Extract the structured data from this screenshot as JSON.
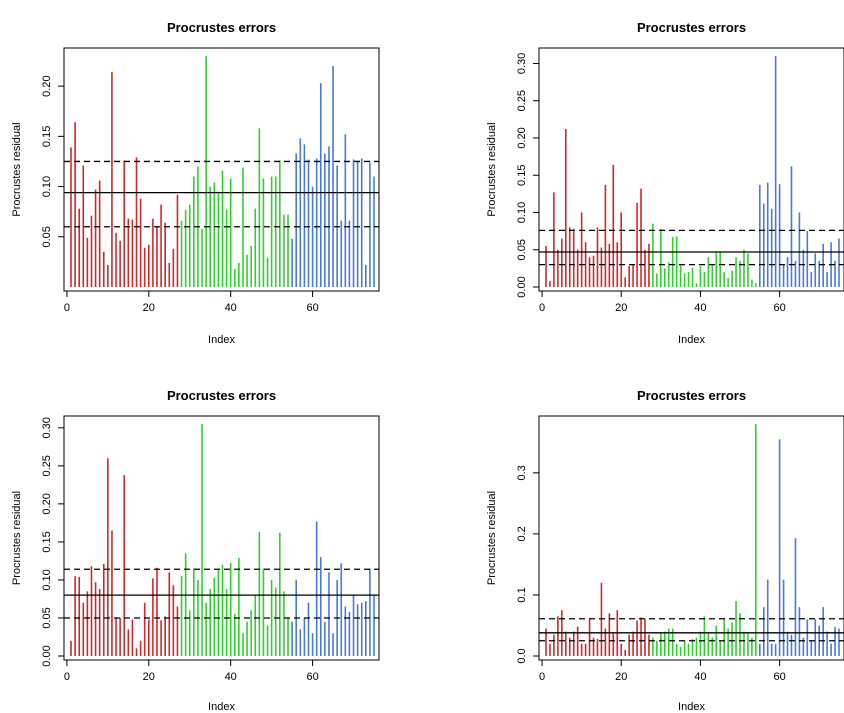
{
  "chart_data": [
    {
      "type": "bar",
      "title": "Procrustes errors",
      "xlabel": "Index",
      "ylabel": "Procrustes residual",
      "xlim": [
        1,
        75
      ],
      "ylim": [
        0.0,
        0.23
      ],
      "xticks": [
        0,
        20,
        40,
        60
      ],
      "yticks": [
        0.05,
        0.1,
        0.15,
        0.2
      ],
      "yticklabels": [
        "0.05",
        "0.10",
        "0.15",
        "0.20"
      ],
      "hlines": [
        {
          "name": "upper-quantile",
          "value": 0.125,
          "style": "dashed"
        },
        {
          "name": "median",
          "value": 0.094,
          "style": "solid"
        },
        {
          "name": "lower-quantile",
          "value": 0.06,
          "style": "dashed"
        }
      ],
      "group_colors": [
        "#cc2a2a",
        "#2fd12f",
        "#4a7bd4"
      ],
      "group_breaks": [
        27,
        54
      ],
      "values": [
        0.139,
        0.164,
        0.078,
        0.121,
        0.049,
        0.071,
        0.097,
        0.106,
        0.035,
        0.022,
        0.214,
        0.054,
        0.046,
        0.126,
        0.068,
        0.067,
        0.129,
        0.088,
        0.039,
        0.042,
        0.068,
        0.06,
        0.082,
        0.064,
        0.024,
        0.038,
        0.092,
        0.066,
        0.077,
        0.082,
        0.11,
        0.12,
        0.058,
        0.23,
        0.1,
        0.104,
        0.095,
        0.116,
        0.077,
        0.108,
        0.018,
        0.024,
        0.119,
        0.032,
        0.041,
        0.078,
        0.158,
        0.108,
        0.029,
        0.11,
        0.11,
        0.126,
        0.072,
        0.072,
        0.048,
        0.133,
        0.148,
        0.142,
        0.127,
        0.1,
        0.128,
        0.203,
        0.133,
        0.14,
        0.22,
        0.121,
        0.066,
        0.152,
        0.066,
        0.127,
        0.125,
        0.128,
        0.022,
        0.124,
        0.11
      ]
    },
    {
      "type": "bar",
      "title": "Procrustes errors",
      "xlabel": "Index",
      "ylabel": "Procrustes residual",
      "xlim": [
        1,
        75
      ],
      "ylim": [
        0.0,
        0.31
      ],
      "xticks": [
        0,
        20,
        40,
        60
      ],
      "yticks": [
        0.0,
        0.05,
        0.1,
        0.15,
        0.2,
        0.25,
        0.3
      ],
      "yticklabels": [
        "0.00",
        "0.05",
        "0.10",
        "0.15",
        "0.20",
        "0.25",
        "0.30"
      ],
      "hlines": [
        {
          "name": "upper-quantile",
          "value": 0.076,
          "style": "dashed"
        },
        {
          "name": "median",
          "value": 0.047,
          "style": "solid"
        },
        {
          "name": "lower-quantile",
          "value": 0.03,
          "style": "dashed"
        }
      ],
      "group_colors": [
        "#cc2a2a",
        "#2fd12f",
        "#4a7bd4"
      ],
      "group_breaks": [
        27,
        54
      ],
      "values": [
        0.055,
        0.008,
        0.127,
        0.05,
        0.065,
        0.212,
        0.08,
        0.078,
        0.05,
        0.1,
        0.06,
        0.04,
        0.042,
        0.08,
        0.053,
        0.137,
        0.058,
        0.164,
        0.06,
        0.1,
        0.013,
        0.028,
        0.03,
        0.113,
        0.132,
        0.05,
        0.058,
        0.085,
        0.018,
        0.078,
        0.025,
        0.033,
        0.067,
        0.068,
        0.03,
        0.018,
        0.02,
        0.026,
        0.005,
        0.028,
        0.02,
        0.04,
        0.03,
        0.048,
        0.048,
        0.02,
        0.012,
        0.022,
        0.04,
        0.035,
        0.05,
        0.045,
        0.01,
        0.005,
        0.137,
        0.112,
        0.14,
        0.105,
        0.31,
        0.138,
        0.03,
        0.04,
        0.162,
        0.035,
        0.1,
        0.05,
        0.075,
        0.02,
        0.045,
        0.035,
        0.058,
        0.02,
        0.06,
        0.035,
        0.065
      ]
    },
    {
      "type": "bar",
      "title": "Procrustes errors",
      "xlabel": "Index",
      "ylabel": "Procrustes residual",
      "xlim": [
        1,
        75
      ],
      "ylim": [
        0.0,
        0.305
      ],
      "xticks": [
        0,
        20,
        40,
        60
      ],
      "yticks": [
        0.0,
        0.05,
        0.1,
        0.15,
        0.2,
        0.25,
        0.3
      ],
      "yticklabels": [
        "0.00",
        "0.05",
        "0.10",
        "0.15",
        "0.20",
        "0.25",
        "0.30"
      ],
      "hlines": [
        {
          "name": "upper-quantile",
          "value": 0.114,
          "style": "dashed"
        },
        {
          "name": "median",
          "value": 0.08,
          "style": "solid"
        },
        {
          "name": "lower-quantile",
          "value": 0.05,
          "style": "dashed"
        }
      ],
      "group_colors": [
        "#cc2a2a",
        "#2fd12f",
        "#4a7bd4"
      ],
      "group_breaks": [
        27,
        54
      ],
      "values": [
        0.02,
        0.105,
        0.104,
        0.07,
        0.085,
        0.118,
        0.097,
        0.088,
        0.121,
        0.26,
        0.165,
        0.05,
        0.05,
        0.238,
        0.035,
        0.048,
        0.01,
        0.02,
        0.07,
        0.048,
        0.102,
        0.116,
        0.047,
        0.052,
        0.11,
        0.093,
        0.065,
        0.105,
        0.135,
        0.06,
        0.115,
        0.1,
        0.305,
        0.07,
        0.088,
        0.103,
        0.113,
        0.12,
        0.088,
        0.122,
        0.055,
        0.129,
        0.03,
        0.045,
        0.06,
        0.08,
        0.163,
        0.115,
        0.04,
        0.1,
        0.09,
        0.162,
        0.085,
        0.05,
        0.045,
        0.1,
        0.035,
        0.05,
        0.07,
        0.03,
        0.177,
        0.13,
        0.045,
        0.11,
        0.03,
        0.1,
        0.122,
        0.065,
        0.058,
        0.08,
        0.068,
        0.07,
        0.072,
        0.115,
        0.08
      ]
    },
    {
      "type": "bar",
      "title": "Procrustes errors",
      "xlabel": "Index",
      "ylabel": "Procrustes residual",
      "xlim": [
        1,
        75
      ],
      "ylim": [
        0.0,
        0.38
      ],
      "xticks": [
        0,
        20,
        40,
        60
      ],
      "yticks": [
        0.0,
        0.1,
        0.2,
        0.3
      ],
      "yticklabels": [
        "0.0",
        "0.1",
        "0.2",
        "0.3"
      ],
      "hlines": [
        {
          "name": "upper-quantile",
          "value": 0.061,
          "style": "dashed"
        },
        {
          "name": "median",
          "value": 0.038,
          "style": "solid"
        },
        {
          "name": "lower-quantile",
          "value": 0.025,
          "style": "dashed"
        }
      ],
      "group_colors": [
        "#cc2a2a",
        "#2fd12f",
        "#4a7bd4"
      ],
      "group_breaks": [
        27,
        54
      ],
      "values": [
        0.045,
        0.02,
        0.035,
        0.065,
        0.075,
        0.04,
        0.03,
        0.04,
        0.048,
        0.02,
        0.02,
        0.06,
        0.03,
        0.028,
        0.12,
        0.045,
        0.07,
        0.038,
        0.075,
        0.02,
        0.01,
        0.035,
        0.04,
        0.058,
        0.063,
        0.06,
        0.035,
        0.03,
        0.025,
        0.038,
        0.04,
        0.045,
        0.045,
        0.02,
        0.015,
        0.025,
        0.02,
        0.028,
        0.03,
        0.04,
        0.065,
        0.038,
        0.03,
        0.05,
        0.025,
        0.06,
        0.045,
        0.055,
        0.09,
        0.07,
        0.04,
        0.038,
        0.03,
        0.38,
        0.02,
        0.08,
        0.125,
        0.02,
        0.02,
        0.355,
        0.125,
        0.04,
        0.035,
        0.193,
        0.08,
        0.03,
        0.06,
        0.025,
        0.06,
        0.05,
        0.08,
        0.04,
        0.02,
        0.048,
        0.045
      ]
    }
  ]
}
